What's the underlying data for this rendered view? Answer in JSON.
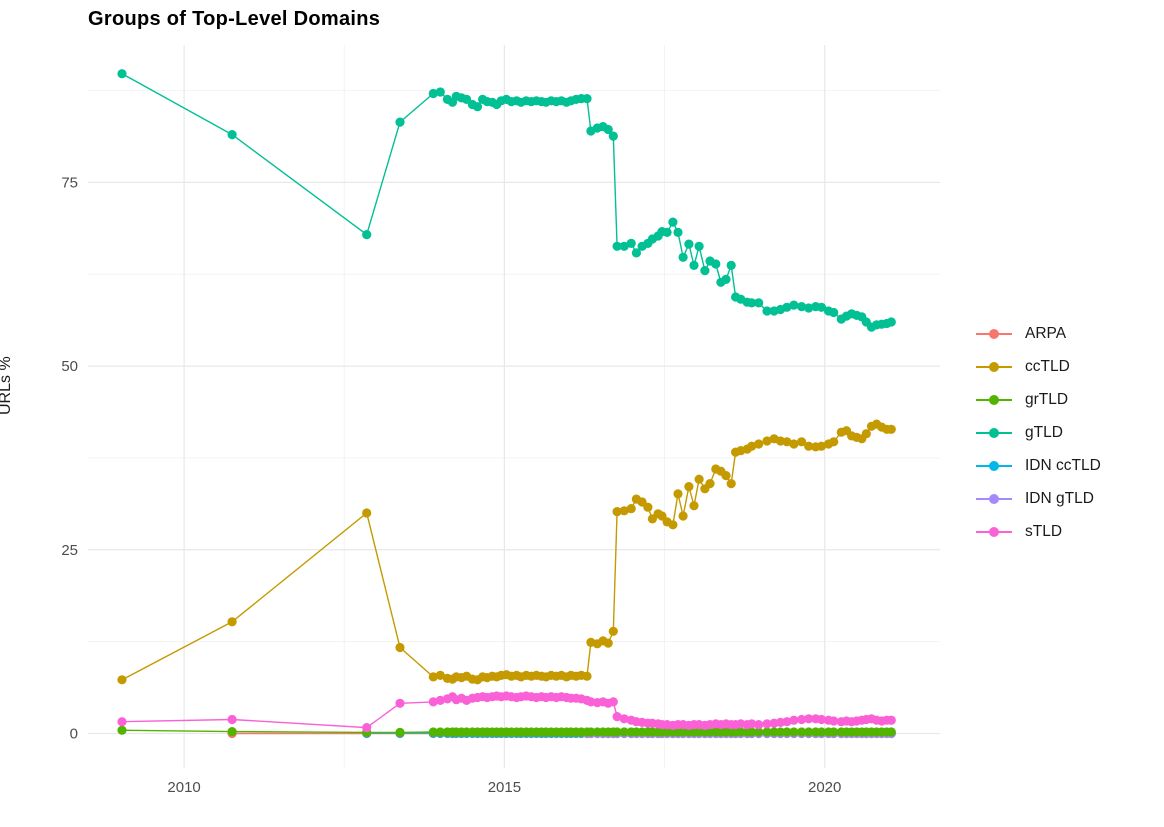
{
  "chart_data": {
    "type": "line",
    "title": "Groups of Top-Level Domains",
    "xlabel": "",
    "ylabel": "URLs %",
    "background": "#FFFFFF",
    "style": {
      "grid_major_color": "#E8E8E8",
      "grid_minor_color": "#F2F2F2",
      "tick_label_color": "#4d4d4d",
      "point_radius": 4.6,
      "line_width": 1.4
    },
    "x_axis": {
      "ticks": [
        2010,
        2015,
        2020
      ],
      "minor_ticks": [
        2012.5,
        2017.5
      ],
      "range": [
        2008.5,
        2021.8
      ]
    },
    "y_axis": {
      "ticks": [
        0,
        25,
        50,
        75
      ],
      "minor_ticks": [
        12.5,
        37.5,
        62.5,
        87.5
      ],
      "range": [
        -4.7,
        93.7
      ]
    },
    "legend_position": "right",
    "draw_order": [
      "ARPA",
      "IDN ccTLD",
      "IDN gTLD",
      "grTLD",
      "ccTLD",
      "gTLD",
      "sTLD"
    ],
    "dense_x": [
      2013.89,
      2014.0,
      2014.11,
      2014.19,
      2014.25,
      2014.33,
      2014.41,
      2014.5,
      2014.58,
      2014.66,
      2014.73,
      2014.81,
      2014.88,
      2014.95,
      2015.03,
      2015.11,
      2015.19,
      2015.26,
      2015.34,
      2015.42,
      2015.5,
      2015.58,
      2015.65,
      2015.73,
      2015.81,
      2015.89,
      2015.97,
      2016.04,
      2016.12,
      2016.2,
      2016.29,
      2016.35,
      2016.45,
      2016.54,
      2016.62,
      2016.7,
      2016.76,
      2016.87,
      2016.98,
      2017.06,
      2017.15,
      2017.24,
      2017.31,
      2017.4,
      2017.46,
      2017.54,
      2017.63,
      2017.71,
      2017.79,
      2017.88,
      2017.96,
      2018.04,
      2018.13,
      2018.21,
      2018.3,
      2018.38,
      2018.46,
      2018.54,
      2018.61,
      2018.69,
      2018.79,
      2018.86,
      2018.97,
      2019.1,
      2019.21,
      2019.31,
      2019.41,
      2019.52,
      2019.64,
      2019.75,
      2019.86,
      2019.95,
      2020.06,
      2020.14,
      2020.26,
      2020.34,
      2020.42,
      2020.5,
      2020.58,
      2020.65,
      2020.73,
      2020.81,
      2020.89,
      2020.97,
      2021.04
    ],
    "series": [
      {
        "name": "ARPA",
        "color": "#F8766D",
        "x_head": [
          2010.75,
          2012.85,
          2013.37
        ],
        "y_const": 0.0
      },
      {
        "name": "ccTLD",
        "color": "#C49A00",
        "x_head": [
          2009.03,
          2010.75,
          2012.85,
          2013.37
        ],
        "y": [
          7.3,
          15.2,
          30.0,
          11.7,
          7.7,
          7.9,
          7.5,
          7.4,
          7.7,
          7.6,
          7.8,
          7.4,
          7.3,
          7.7,
          7.6,
          7.8,
          7.7,
          7.9,
          8.0,
          7.8,
          7.9,
          7.7,
          7.9,
          7.8,
          7.9,
          7.8,
          7.7,
          7.9,
          7.8,
          7.9,
          7.7,
          7.9,
          7.8,
          7.9,
          7.8,
          12.4,
          12.2,
          12.6,
          12.3,
          13.9,
          30.2,
          30.3,
          30.6,
          31.9,
          31.5,
          30.8,
          29.2,
          29.9,
          29.6,
          28.8,
          28.4,
          32.6,
          29.6,
          33.6,
          31.0,
          34.6,
          33.3,
          34.0,
          36.0,
          35.7,
          35.1,
          34.0,
          38.3,
          38.5,
          38.7,
          39.1,
          39.4,
          39.8,
          40.1,
          39.8,
          39.7,
          39.4,
          39.7,
          39.1,
          39.0,
          39.1,
          39.4,
          39.7,
          41.0,
          41.2,
          40.5,
          40.3,
          40.1,
          40.8,
          41.8,
          42.1,
          41.7,
          41.4,
          41.4
        ]
      },
      {
        "name": "grTLD",
        "color": "#53B400",
        "x_head": [
          2009.03,
          2010.75,
          2012.85,
          2013.37
        ],
        "y_head": [
          0.45,
          0.25,
          0.15,
          0.15
        ],
        "y_const": 0.2
      },
      {
        "name": "gTLD",
        "color": "#00C094",
        "x_head": [
          2009.03,
          2010.75,
          2012.85,
          2013.37
        ],
        "y": [
          89.8,
          81.5,
          67.9,
          83.2,
          87.1,
          87.3,
          86.3,
          85.9,
          86.7,
          86.5,
          86.3,
          85.6,
          85.3,
          86.3,
          86.0,
          85.9,
          85.6,
          86.1,
          86.3,
          86.0,
          86.1,
          85.9,
          86.1,
          86.0,
          86.1,
          86.0,
          85.9,
          86.1,
          86.0,
          86.1,
          85.9,
          86.1,
          86.3,
          86.4,
          86.4,
          82.0,
          82.4,
          82.6,
          82.2,
          81.3,
          66.3,
          66.3,
          66.7,
          65.4,
          66.3,
          66.7,
          67.3,
          67.7,
          68.3,
          68.2,
          69.6,
          68.2,
          64.8,
          66.6,
          63.7,
          66.3,
          63.0,
          64.3,
          63.9,
          61.4,
          61.8,
          63.7,
          59.4,
          59.1,
          58.7,
          58.6,
          58.6,
          57.5,
          57.5,
          57.7,
          58.0,
          58.3,
          58.1,
          57.9,
          58.1,
          58.0,
          57.5,
          57.3,
          56.4,
          56.8,
          57.1,
          56.9,
          56.7,
          56.0,
          55.3,
          55.6,
          55.7,
          55.8,
          56.0
        ]
      },
      {
        "name": "IDN ccTLD",
        "color": "#00B6EB",
        "x_head": [
          2012.85,
          2013.37
        ],
        "y_const": 0.05
      },
      {
        "name": "IDN gTLD",
        "color": "#A58AFF",
        "dense_from": 2016.29,
        "y_const": 0.0
      },
      {
        "name": "sTLD",
        "color": "#FB61D7",
        "x_head": [
          2009.03,
          2010.75,
          2012.85,
          2013.37
        ],
        "y": [
          1.6,
          1.9,
          0.8,
          4.1,
          4.3,
          4.5,
          4.7,
          5.0,
          4.6,
          4.8,
          4.5,
          4.8,
          4.9,
          5.0,
          4.9,
          5.0,
          5.1,
          5.0,
          5.1,
          5.0,
          4.9,
          5.0,
          5.1,
          5.0,
          4.9,
          5.0,
          4.9,
          5.0,
          4.9,
          5.0,
          4.9,
          4.8,
          4.8,
          4.7,
          4.5,
          4.3,
          4.2,
          4.3,
          4.1,
          4.3,
          2.3,
          2.0,
          1.8,
          1.6,
          1.5,
          1.4,
          1.4,
          1.3,
          1.2,
          1.2,
          1.1,
          1.2,
          1.2,
          1.1,
          1.2,
          1.2,
          1.1,
          1.2,
          1.3,
          1.2,
          1.3,
          1.2,
          1.2,
          1.3,
          1.2,
          1.3,
          1.2,
          1.3,
          1.4,
          1.5,
          1.6,
          1.8,
          1.9,
          2.0,
          2.0,
          1.9,
          1.8,
          1.7,
          1.6,
          1.7,
          1.6,
          1.7,
          1.8,
          1.9,
          2.0,
          1.8,
          1.7,
          1.8,
          1.8
        ]
      }
    ]
  }
}
